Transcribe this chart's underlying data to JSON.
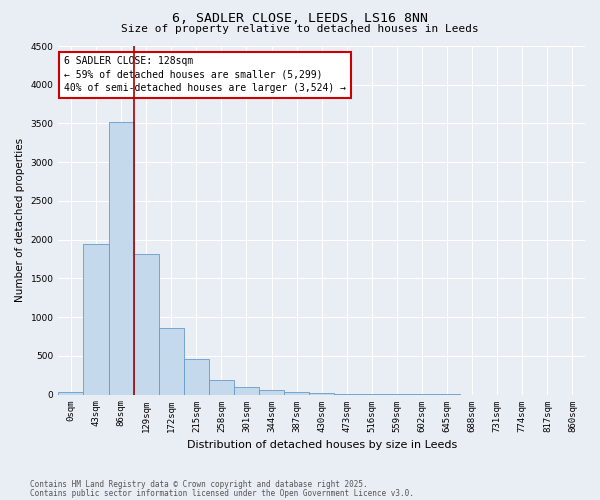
{
  "title": "6, SADLER CLOSE, LEEDS, LS16 8NN",
  "subtitle": "Size of property relative to detached houses in Leeds",
  "xlabel": "Distribution of detached houses by size in Leeds",
  "ylabel": "Number of detached properties",
  "bar_color": "#c5d9ed",
  "bar_edge_color": "#6699cc",
  "vline_color": "#aa0000",
  "vline_x": 2.5,
  "annotation_title": "6 SADLER CLOSE: 128sqm",
  "annotation_line1": "← 59% of detached houses are smaller (5,299)",
  "annotation_line2": "40% of semi-detached houses are larger (3,524) →",
  "annotation_box_color": "#cc0000",
  "categories": [
    "0sqm",
    "43sqm",
    "86sqm",
    "129sqm",
    "172sqm",
    "215sqm",
    "258sqm",
    "301sqm",
    "344sqm",
    "387sqm",
    "430sqm",
    "473sqm",
    "516sqm",
    "559sqm",
    "602sqm",
    "645sqm",
    "688sqm",
    "731sqm",
    "774sqm",
    "817sqm",
    "860sqm"
  ],
  "values": [
    30,
    1950,
    3520,
    1810,
    860,
    460,
    185,
    95,
    55,
    35,
    20,
    10,
    5,
    3,
    2,
    1,
    0,
    0,
    0,
    0,
    0
  ],
  "ylim": [
    0,
    4500
  ],
  "yticks": [
    0,
    500,
    1000,
    1500,
    2000,
    2500,
    3000,
    3500,
    4000,
    4500
  ],
  "footnote1": "Contains HM Land Registry data © Crown copyright and database right 2025.",
  "footnote2": "Contains public sector information licensed under the Open Government Licence v3.0.",
  "bg_color": "#e8eef4",
  "grid_color": "#ffffff",
  "title_fontsize": 9.5,
  "subtitle_fontsize": 8,
  "tick_fontsize": 6.5,
  "ylabel_fontsize": 7.5,
  "xlabel_fontsize": 8
}
